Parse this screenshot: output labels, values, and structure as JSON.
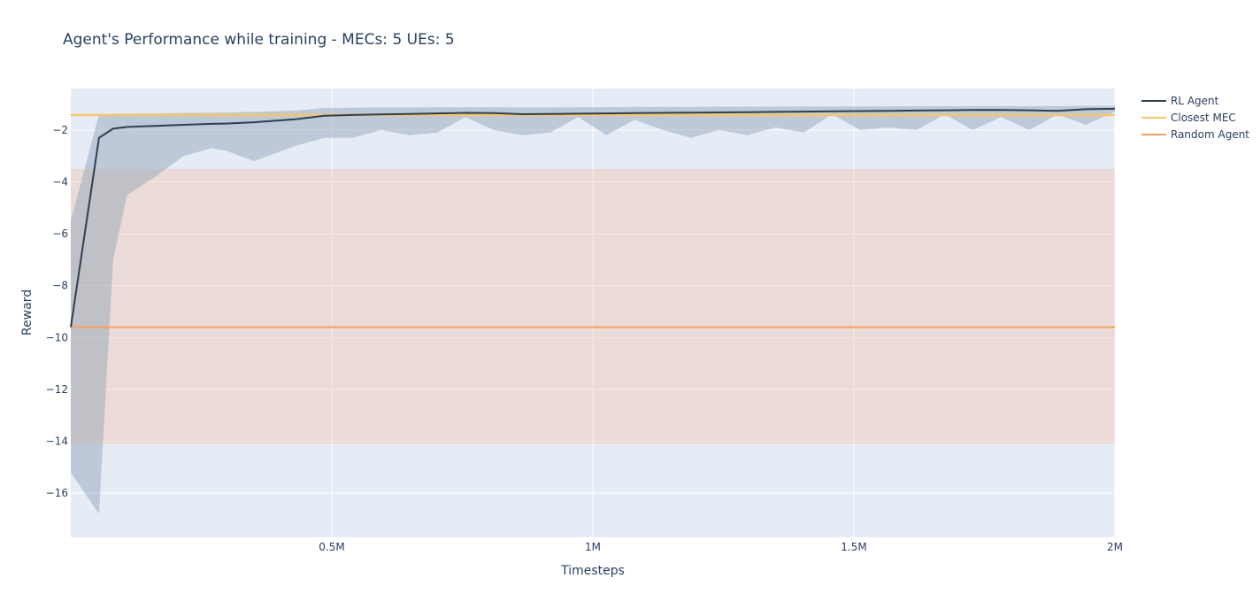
{
  "chart_data": {
    "type": "line",
    "title": "Agent's Performance while training - MECs: 5 UEs: 5",
    "xlabel": "Timesteps",
    "ylabel": "Reward",
    "xlim": [
      0,
      2000000
    ],
    "ylim": [
      -17.7,
      -0.4
    ],
    "x_ticks": [
      {
        "value": 500000,
        "label": "0.5M"
      },
      {
        "value": 1000000,
        "label": "1M"
      },
      {
        "value": 1500000,
        "label": "1.5M"
      },
      {
        "value": 2000000,
        "label": "2M"
      }
    ],
    "y_ticks": [
      {
        "value": -2,
        "label": "−2"
      },
      {
        "value": -4,
        "label": "−4"
      },
      {
        "value": -6,
        "label": "−6"
      },
      {
        "value": -8,
        "label": "−8"
      },
      {
        "value": -10,
        "label": "−10"
      },
      {
        "value": -12,
        "label": "−12"
      },
      {
        "value": -14,
        "label": "−14"
      },
      {
        "value": -16,
        "label": "−16"
      }
    ],
    "grid": true,
    "legend_position": "top-right",
    "colors": {
      "rl_agent": "#2f3f4f",
      "closest_mec": "#f5c46b",
      "random_agent": "#f5a05f",
      "rl_band": "rgba(140,160,180,0.45)",
      "random_band": "rgba(245,190,160,0.35)",
      "closest_band": "rgba(245,200,120,0.35)",
      "plot_bg": "#e5ecf6",
      "grid": "#ffffff"
    },
    "series": [
      {
        "name": "RL Agent",
        "x": [
          0,
          54000,
          81000,
          108000,
          162000,
          216000,
          270000,
          297000,
          351000,
          432000,
          486000,
          540000,
          594000,
          648000,
          702000,
          756000,
          810000,
          864000,
          918000,
          972000,
          1026000,
          1080000,
          1134000,
          1188000,
          1242000,
          1296000,
          1350000,
          1404000,
          1458000,
          1512000,
          1566000,
          1620000,
          1674000,
          1728000,
          1782000,
          1836000,
          1890000,
          1944000,
          2000000
        ],
        "y": [
          -9.6,
          -2.3,
          -1.95,
          -1.88,
          -1.84,
          -1.8,
          -1.76,
          -1.75,
          -1.7,
          -1.58,
          -1.45,
          -1.42,
          -1.4,
          -1.38,
          -1.36,
          -1.34,
          -1.35,
          -1.39,
          -1.38,
          -1.37,
          -1.36,
          -1.35,
          -1.34,
          -1.33,
          -1.32,
          -1.31,
          -1.3,
          -1.29,
          -1.28,
          -1.27,
          -1.26,
          -1.25,
          -1.24,
          -1.23,
          -1.23,
          -1.24,
          -1.26,
          -1.2,
          -1.18
        ],
        "lower": [
          -15.2,
          -16.8,
          -7.0,
          -4.5,
          -3.8,
          -3.0,
          -2.7,
          -2.8,
          -3.2,
          -2.6,
          -2.3,
          -2.3,
          -2.0,
          -2.2,
          -2.1,
          -1.5,
          -2.0,
          -2.2,
          -2.1,
          -1.5,
          -2.2,
          -1.6,
          -2.0,
          -2.3,
          -2.0,
          -2.2,
          -1.9,
          -2.1,
          -1.4,
          -2.0,
          -1.9,
          -2.0,
          -1.4,
          -2.0,
          -1.5,
          -2.0,
          -1.4,
          -1.8,
          -1.3
        ],
        "upper": [
          -5.5,
          -1.4,
          -1.38,
          -1.37,
          -1.36,
          -1.34,
          -1.33,
          -1.32,
          -1.3,
          -1.25,
          -1.15,
          -1.14,
          -1.13,
          -1.13,
          -1.12,
          -1.12,
          -1.12,
          -1.13,
          -1.13,
          -1.12,
          -1.12,
          -1.11,
          -1.11,
          -1.11,
          -1.1,
          -1.1,
          -1.1,
          -1.09,
          -1.09,
          -1.09,
          -1.09,
          -1.08,
          -1.08,
          -1.08,
          -1.08,
          -1.08,
          -1.08,
          -1.07,
          -1.07
        ]
      },
      {
        "name": "Closest MEC",
        "x": [
          0,
          2000000
        ],
        "y": [
          -1.42,
          -1.42
        ],
        "lower": [
          -1.48,
          -1.48
        ],
        "upper": [
          -1.36,
          -1.36
        ]
      },
      {
        "name": "Random Agent",
        "x": [
          0,
          2000000
        ],
        "y": [
          -9.6,
          -9.6
        ],
        "lower": [
          -14.1,
          -14.1
        ],
        "upper": [
          -3.5,
          -3.5
        ]
      }
    ]
  }
}
